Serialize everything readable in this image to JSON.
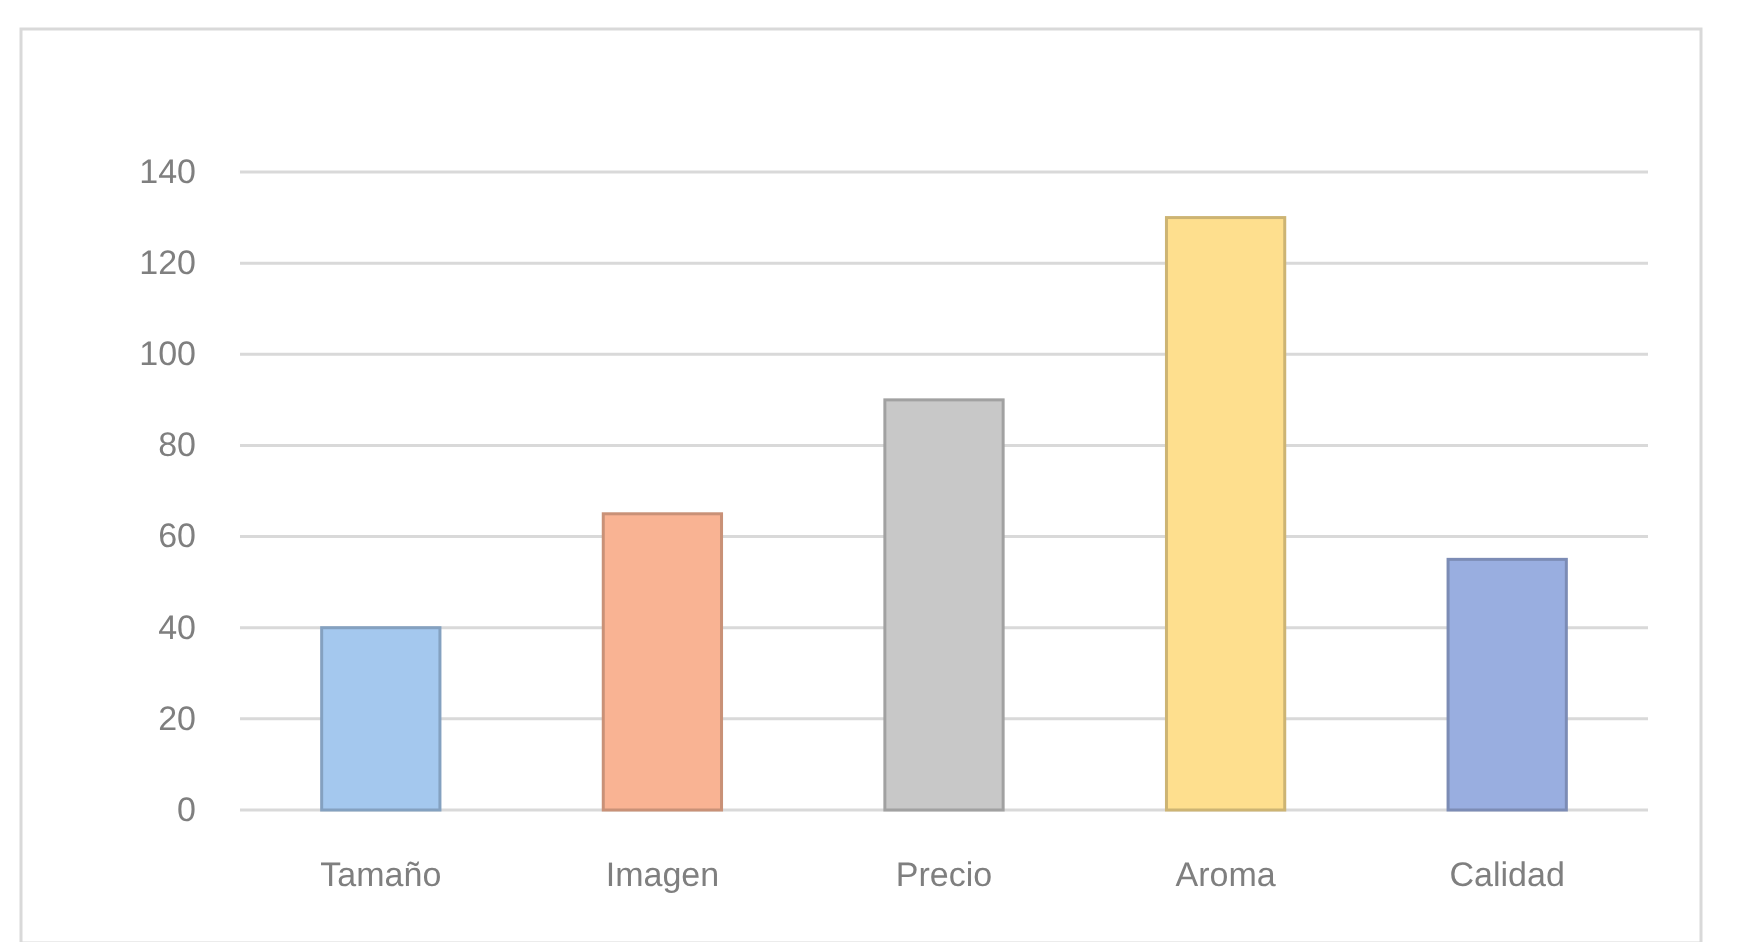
{
  "chart_data": {
    "type": "bar",
    "categories": [
      "Tamaño",
      "Imagen",
      "Precio",
      "Aroma",
      "Calidad"
    ],
    "values": [
      40,
      65,
      90,
      130,
      55
    ],
    "colors": [
      "#a4c8ee",
      "#f9b393",
      "#c8c8c8",
      "#fedf8e",
      "#99aee0"
    ],
    "ylim": [
      0,
      140
    ],
    "yticks": [
      0,
      20,
      40,
      60,
      80,
      100,
      120,
      140
    ],
    "grid": "y"
  }
}
